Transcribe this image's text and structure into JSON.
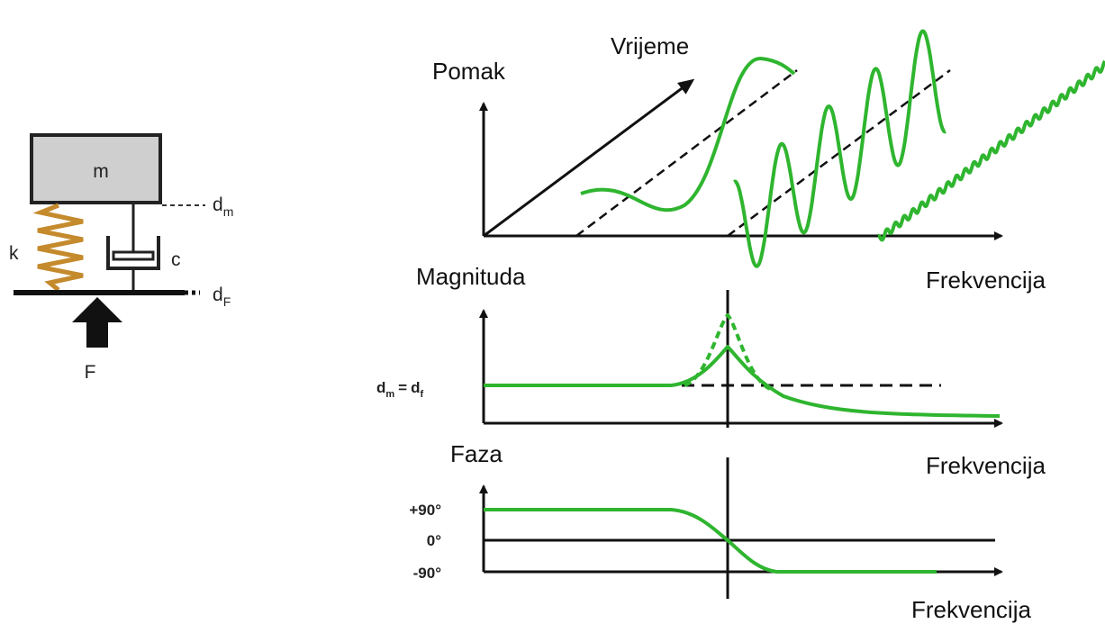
{
  "mechanical": {
    "mass": "m",
    "damper": "c",
    "spring": "k",
    "mass_displacement": {
      "base": "d",
      "sub": "m"
    },
    "base_displacement": {
      "base": "d",
      "sub": "F"
    },
    "force": "F"
  },
  "plots": [
    {
      "y_label": "Pomak",
      "time_label": "Vrijeme",
      "x_label": "Frekvencija"
    },
    {
      "y_label": "Magnituda",
      "level_label": {
        "left": {
          "base": "d",
          "sub": "m"
        },
        "sign": "=",
        "right": {
          "base": "d",
          "sub": "f"
        }
      },
      "x_label": "Frekvencija"
    },
    {
      "y_label": "Faza",
      "x_label": "Frekvencija",
      "ticks": [
        "+90°",
        "0°",
        "-90°"
      ]
    }
  ]
}
